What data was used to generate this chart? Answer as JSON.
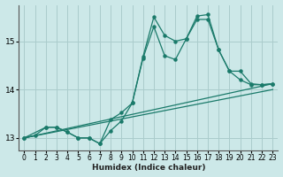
{
  "xlabel": "Humidex (Indice chaleur)",
  "ylabel": "",
  "bg_color": "#cce8e8",
  "grid_color": "#aacccc",
  "line_color": "#1a7a6a",
  "xlim": [
    -0.5,
    23.5
  ],
  "ylim": [
    12.75,
    15.75
  ],
  "xticks": [
    0,
    1,
    2,
    3,
    4,
    5,
    6,
    7,
    8,
    9,
    10,
    11,
    12,
    13,
    14,
    15,
    16,
    17,
    18,
    19,
    20,
    21,
    22,
    23
  ],
  "yticks": [
    13,
    14,
    15
  ],
  "line1_x": [
    0,
    1,
    2,
    3,
    4,
    5,
    6,
    7,
    8,
    9,
    10,
    11,
    12,
    13,
    14,
    15,
    16,
    17,
    18,
    19,
    20,
    21,
    22,
    23
  ],
  "line1_y": [
    13.0,
    13.05,
    13.22,
    13.22,
    13.12,
    13.0,
    13.0,
    12.88,
    13.15,
    13.35,
    13.72,
    14.65,
    15.3,
    14.7,
    14.62,
    15.05,
    15.45,
    15.45,
    14.82,
    14.38,
    14.2,
    14.1,
    14.1,
    14.12
  ],
  "line2_x": [
    0,
    2,
    3,
    4,
    5,
    6,
    7,
    8,
    9,
    10,
    11,
    12,
    13,
    14,
    15,
    16,
    17,
    18,
    19,
    20,
    21,
    22,
    23
  ],
  "line2_y": [
    13.0,
    13.22,
    13.22,
    13.12,
    13.0,
    13.0,
    12.88,
    13.38,
    13.52,
    13.72,
    14.68,
    15.5,
    15.12,
    15.0,
    15.05,
    15.52,
    15.55,
    14.82,
    14.38,
    14.38,
    14.12,
    14.1,
    14.12
  ],
  "line3_x": [
    0,
    23
  ],
  "line3_y": [
    13.0,
    14.12
  ],
  "line4_x": [
    0,
    23
  ],
  "line4_y": [
    13.0,
    14.0
  ]
}
